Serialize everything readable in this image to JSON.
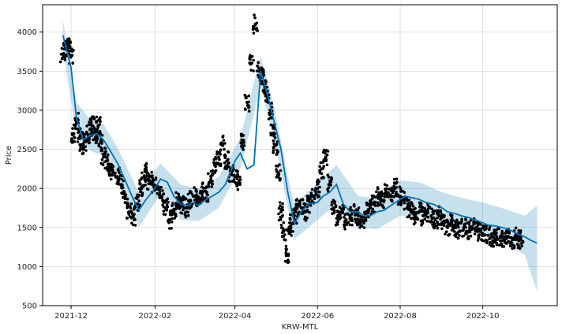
{
  "chart_data": {
    "type": "line",
    "title": "",
    "xlabel": "KRW-MTL",
    "ylabel": "Price",
    "xlim": [
      "2021-11-10",
      "2022-11-25"
    ],
    "ylim": [
      500,
      4350
    ],
    "x_ticks": [
      "2021-12",
      "2022-02",
      "2022-04",
      "2022-06",
      "2022-08",
      "2022-10"
    ],
    "y_ticks": [
      500,
      1000,
      1500,
      2000,
      2500,
      3000,
      3500,
      4000
    ],
    "grid": true,
    "legend": "none",
    "colors": {
      "observed": "#000000",
      "forecast": "#0072B2",
      "band": "#0072B2",
      "grid": "#d9d9d9",
      "axes": "#000000"
    },
    "series": [
      {
        "kind": "observed-points",
        "x": [
          "2021-11-25",
          "2021-11-27",
          "2021-11-29",
          "2021-12-01",
          "2021-12-03",
          "2021-12-05",
          "2021-12-07",
          "2021-12-09",
          "2021-12-11",
          "2021-12-13",
          "2021-12-15",
          "2021-12-17",
          "2021-12-19",
          "2021-12-21",
          "2021-12-23",
          "2021-12-25",
          "2021-12-27",
          "2021-12-29",
          "2022-01-01",
          "2022-01-04",
          "2022-01-07",
          "2022-01-10",
          "2022-01-13",
          "2022-01-16",
          "2022-01-19",
          "2022-01-22",
          "2022-01-24",
          "2022-01-26",
          "2022-01-28",
          "2022-01-31",
          "2022-02-03",
          "2022-02-06",
          "2022-02-09",
          "2022-02-12",
          "2022-02-15",
          "2022-02-18",
          "2022-02-21",
          "2022-02-24",
          "2022-02-27",
          "2022-03-02",
          "2022-03-05",
          "2022-03-08",
          "2022-03-11",
          "2022-03-14",
          "2022-03-17",
          "2022-03-20",
          "2022-03-23",
          "2022-03-26",
          "2022-03-29",
          "2022-04-01",
          "2022-04-04",
          "2022-04-07",
          "2022-04-10",
          "2022-04-13",
          "2022-04-16",
          "2022-04-19",
          "2022-04-21",
          "2022-04-23",
          "2022-04-25",
          "2022-04-27",
          "2022-04-29",
          "2022-05-01",
          "2022-05-03",
          "2022-05-05",
          "2022-05-07",
          "2022-05-09",
          "2022-05-11",
          "2022-05-13",
          "2022-05-15",
          "2022-05-17",
          "2022-05-20",
          "2022-05-23",
          "2022-05-26",
          "2022-05-29",
          "2022-06-01",
          "2022-06-04",
          "2022-06-07",
          "2022-06-10",
          "2022-06-13",
          "2022-06-16",
          "2022-06-19",
          "2022-06-22",
          "2022-06-25",
          "2022-06-28",
          "2022-07-01",
          "2022-07-04",
          "2022-07-07",
          "2022-07-10",
          "2022-07-13",
          "2022-07-16",
          "2022-07-19",
          "2022-07-22",
          "2022-07-25",
          "2022-07-28",
          "2022-07-31",
          "2022-08-03",
          "2022-08-06",
          "2022-08-09",
          "2022-08-12",
          "2022-08-15",
          "2022-08-18",
          "2022-08-21",
          "2022-08-24",
          "2022-08-27",
          "2022-08-30",
          "2022-09-02",
          "2022-09-05",
          "2022-09-08",
          "2022-09-11",
          "2022-09-14",
          "2022-09-17",
          "2022-09-20",
          "2022-09-23",
          "2022-09-26",
          "2022-09-29",
          "2022-10-02",
          "2022-10-05",
          "2022-10-08",
          "2022-10-11",
          "2022-10-14",
          "2022-10-17",
          "2022-10-20",
          "2022-10-23",
          "2022-10-26",
          "2022-10-29"
        ],
        "y": [
          3720,
          3800,
          3850,
          3700,
          2700,
          2850,
          2650,
          2550,
          2600,
          2700,
          2750,
          2800,
          2650,
          2800,
          2600,
          2400,
          2350,
          2250,
          2200,
          2150,
          2050,
          1900,
          1700,
          1650,
          1800,
          2000,
          2150,
          2200,
          2100,
          2050,
          2000,
          1900,
          1750,
          1600,
          1700,
          1850,
          1800,
          1750,
          1850,
          1900,
          1850,
          1950,
          1950,
          2100,
          2300,
          2400,
          2550,
          2350,
          2200,
          2150,
          2100,
          2600,
          3100,
          3600,
          4100,
          3500,
          3450,
          3300,
          3200,
          3000,
          2700,
          2550,
          2200,
          1700,
          1450,
          1150,
          1500,
          1550,
          1650,
          1750,
          1750,
          1700,
          1800,
          1900,
          2000,
          2250,
          2400,
          2050,
          1750,
          1650,
          1700,
          1600,
          1650,
          1700,
          1650,
          1600,
          1700,
          1750,
          1800,
          1900,
          1850,
          1950,
          1900,
          2000,
          1900,
          1850,
          1750,
          1700,
          1650,
          1700,
          1650,
          1700,
          1650,
          1600,
          1650,
          1550,
          1500,
          1550,
          1500,
          1450,
          1500,
          1450,
          1500,
          1500,
          1450,
          1400,
          1400,
          1380,
          1350,
          1380,
          1350,
          1380,
          1350,
          1380,
          1350
        ]
      },
      {
        "kind": "forecast-line",
        "x": [
          "2021-11-25",
          "2021-12-01",
          "2021-12-05",
          "2021-12-10",
          "2021-12-15",
          "2021-12-20",
          "2021-12-25",
          "2021-12-30",
          "2022-01-05",
          "2022-01-10",
          "2022-01-15",
          "2022-01-20",
          "2022-01-25",
          "2022-02-01",
          "2022-02-05",
          "2022-02-10",
          "2022-02-15",
          "2022-02-20",
          "2022-02-25",
          "2022-03-01",
          "2022-03-05",
          "2022-03-10",
          "2022-03-15",
          "2022-03-20",
          "2022-03-25",
          "2022-04-01",
          "2022-04-05",
          "2022-04-10",
          "2022-04-15",
          "2022-04-20",
          "2022-04-25",
          "2022-04-30",
          "2022-05-05",
          "2022-05-10",
          "2022-05-15",
          "2022-05-20",
          "2022-05-25",
          "2022-06-01",
          "2022-06-05",
          "2022-06-10",
          "2022-06-15",
          "2022-06-20",
          "2022-06-25",
          "2022-07-01",
          "2022-07-05",
          "2022-07-10",
          "2022-07-15",
          "2022-07-20",
          "2022-07-25",
          "2022-08-01",
          "2022-08-05",
          "2022-08-10",
          "2022-08-15",
          "2022-08-20",
          "2022-08-25",
          "2022-09-01",
          "2022-09-05",
          "2022-09-10",
          "2022-09-15",
          "2022-09-20",
          "2022-09-25",
          "2022-10-01",
          "2022-10-05",
          "2022-10-10",
          "2022-10-15",
          "2022-10-20",
          "2022-10-25",
          "2022-11-01",
          "2022-11-05",
          "2022-11-10"
        ],
        "y": [
          3960,
          3550,
          2900,
          2620,
          2680,
          2700,
          2620,
          2480,
          2300,
          2100,
          1900,
          1720,
          1850,
          2000,
          2120,
          2080,
          1900,
          1800,
          1780,
          1820,
          1780,
          1850,
          1900,
          1950,
          2050,
          2350,
          2450,
          2250,
          2300,
          3500,
          3200,
          2850,
          2500,
          1950,
          1550,
          1700,
          1800,
          1820,
          1900,
          1950,
          2050,
          1800,
          1700,
          1700,
          1650,
          1650,
          1700,
          1720,
          1780,
          1860,
          1900,
          1880,
          1860,
          1820,
          1800,
          1750,
          1700,
          1680,
          1650,
          1630,
          1600,
          1560,
          1530,
          1520,
          1500,
          1480,
          1430,
          1380,
          1340,
          1300
        ]
      }
    ],
    "uncertainty_band": {
      "x": [
        "2021-11-25",
        "2021-12-05",
        "2021-12-15",
        "2021-12-25",
        "2022-01-05",
        "2022-01-20",
        "2022-02-05",
        "2022-02-20",
        "2022-03-05",
        "2022-03-20",
        "2022-04-05",
        "2022-04-20",
        "2022-04-30",
        "2022-05-10",
        "2022-05-15",
        "2022-06-01",
        "2022-06-15",
        "2022-07-01",
        "2022-07-15",
        "2022-08-01",
        "2022-08-15",
        "2022-09-01",
        "2022-09-15",
        "2022-10-01",
        "2022-10-15",
        "2022-11-01",
        "2022-11-10"
      ],
      "upper": [
        4150,
        3100,
        2880,
        2820,
        2500,
        1950,
        2320,
        2050,
        2000,
        2150,
        2650,
        3700,
        3050,
        2150,
        1800,
        2070,
        2300,
        1900,
        1880,
        2100,
        2080,
        1950,
        1880,
        1820,
        1750,
        1650,
        1780
      ],
      "lower": [
        3780,
        2700,
        2480,
        2420,
        2100,
        1500,
        1930,
        1600,
        1580,
        1750,
        2250,
        3300,
        2650,
        1750,
        1350,
        1600,
        1800,
        1500,
        1480,
        1650,
        1640,
        1550,
        1450,
        1400,
        1320,
        1150,
        680
      ]
    }
  }
}
